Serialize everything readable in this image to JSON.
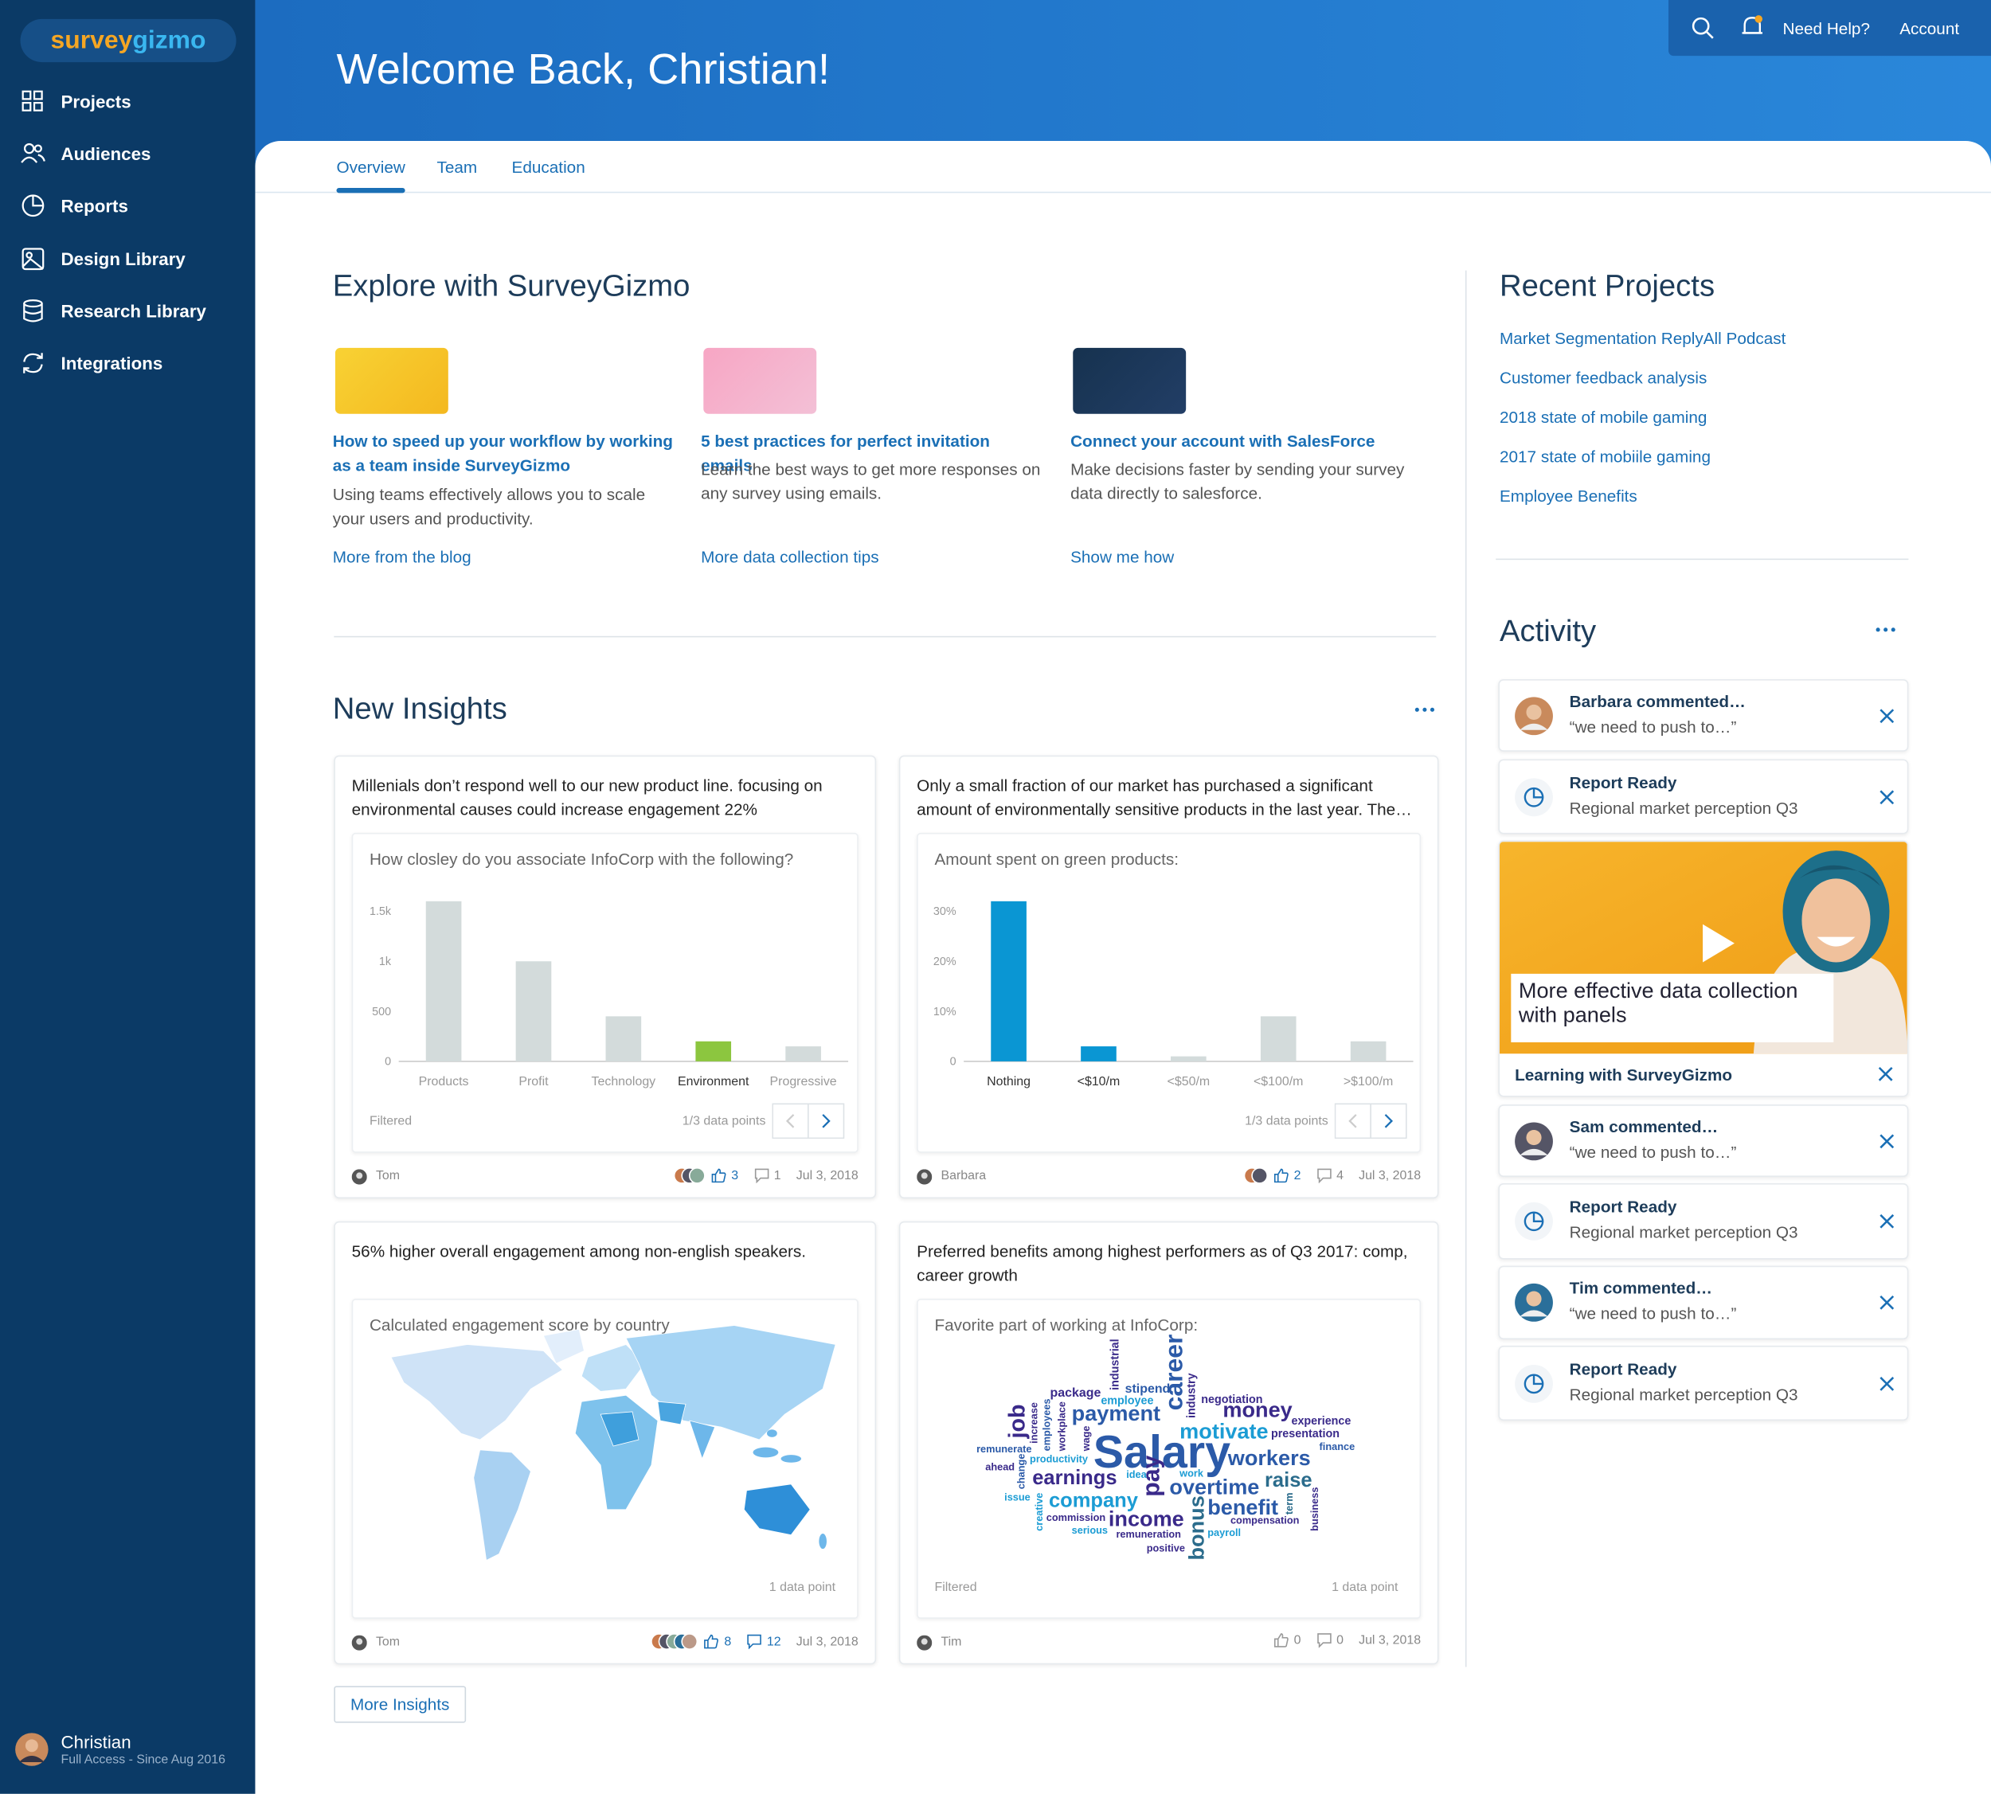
{
  "brand": [
    "survey",
    "gizmo"
  ],
  "nav": [
    "Projects",
    "Audiences",
    "Reports",
    "Design Library",
    "Research Library",
    "Integrations"
  ],
  "user": {
    "name": "Christian",
    "access": "Full Access - Since Aug 2016"
  },
  "header": {
    "title": "Welcome Back, Christian!",
    "links": [
      "Need Help?",
      "Account"
    ]
  },
  "tabs": [
    "Overview",
    "Team",
    "Education"
  ],
  "explore": {
    "title": "Explore with SurveyGizmo",
    "cards": [
      {
        "title": "How to speed up your workflow by working as a team inside SurveyGizmo",
        "text": "Using teams effectively allows you to scale your users and productivity.",
        "link": "More from the blog"
      },
      {
        "title": "5 best practices for perfect invitation emails",
        "text": "Learn the best ways to get more responses on any survey using emails.",
        "link": "More data collection tips"
      },
      {
        "title": "Connect your account with SalesForce",
        "text": "Make decisions faster by sending your survey data directly to salesforce.",
        "link": "Show me how"
      }
    ]
  },
  "insights": {
    "title": "New Insights",
    "more": "More Insights",
    "cards": [
      {
        "text": "Millenials don’t respond well to our new product line. focusing on environmental causes could increase engagement 22%",
        "chart": {
          "type": "bar",
          "title": "How closley do you associate InfoCorp with the following?",
          "categories": [
            "Products",
            "Profit",
            "Technology",
            "Environment",
            "Progressive"
          ],
          "values": [
            1600,
            1000,
            450,
            200,
            150
          ],
          "colors": [
            "#d3dbdb",
            "#d3dbdb",
            "#d3dbdb",
            "#8cc63f",
            "#d3dbdb"
          ],
          "highlight": [
            3
          ],
          "ylim": [
            0,
            1700
          ],
          "yticks": [
            0,
            500,
            {
              "value": 1000,
              "label": "1k"
            },
            {
              "value": 1500,
              "label": "1.5k"
            }
          ],
          "grid": false,
          "filter": "Filtered",
          "points": "1/3 data points"
        },
        "author": "Tom",
        "likes": 3,
        "comments": 1,
        "date": "Jul 3, 2018"
      },
      {
        "text": "Only a small fraction of our market has purchased a significant amount of environmentally sensitive products in the last year. The…",
        "chart": {
          "type": "bar",
          "title": "Amount spent on green products:",
          "categories": [
            "Nothing",
            "<$10/m",
            "<$50/m",
            "<$100/m",
            ">$100/m"
          ],
          "values": [
            32,
            3,
            1,
            9,
            4
          ],
          "colors": [
            "#0a96d3",
            "#0a96d3",
            "#d3dbdb",
            "#d3dbdb",
            "#d3dbdb"
          ],
          "highlight": [
            0,
            1
          ],
          "ylim": [
            0,
            34
          ],
          "yticks": [
            0,
            {
              "value": 10,
              "label": "10%"
            },
            {
              "value": 20,
              "label": "20%"
            },
            {
              "value": 30,
              "label": "30%"
            }
          ],
          "grid": false,
          "points": "1/3 data points"
        },
        "author": "Barbara",
        "likes": 2,
        "comments": 4,
        "date": "Jul 3, 2018"
      },
      {
        "text": "56% higher overall engagement among non-english speakers.",
        "chart": {
          "type": "map",
          "title": "Calculated engagement score by country",
          "points": "1 data point"
        },
        "author": "Tom",
        "likes": 8,
        "comments": 12,
        "date": "Jul 3, 2018"
      },
      {
        "text": "Preferred benefits among highest performers as of Q3 2017: comp, career growth",
        "chart": {
          "type": "wordcloud",
          "title": "Favorite part of working at InfoCorp:",
          "words": [
            "Salary",
            "payment",
            "career",
            "money",
            "motivate",
            "workers",
            "earnings",
            "overtime",
            "raise",
            "company",
            "income",
            "benefit",
            "bonus",
            "pay",
            "job",
            "package",
            "stipend",
            "employee",
            "industrial",
            "industry",
            "negotiation",
            "experience",
            "presentation",
            "finance",
            "remunerate",
            "productivity",
            "ahead",
            "increase",
            "employees",
            "workplace",
            "wage",
            "change",
            "issue",
            "creative",
            "idea",
            "work",
            "term",
            "business",
            "commission",
            "serious",
            "remuneration",
            "compensation",
            "payroll",
            "positive"
          ],
          "filter": "Filtered",
          "points": "1 data point"
        },
        "author": "Tim",
        "likes": 0,
        "comments": 0,
        "date": "Jul 3, 2018"
      }
    ]
  },
  "recent": {
    "title": "Recent Projects",
    "items": [
      "Market Segmentation ReplyAll Podcast",
      "Customer feedback analysis",
      "2018 state of mobile gaming",
      "2017 state of mobiile gaming",
      "Employee Benefits"
    ]
  },
  "activity": {
    "title": "Activity",
    "items": [
      {
        "title": "Barbara commented…",
        "text": "“we need to push to…”"
      },
      {
        "title": "Report Ready",
        "text": "Regional market perception Q3"
      },
      {
        "title": "Sam commented…",
        "text": "“we need to push to…”"
      },
      {
        "title": "Report Ready",
        "text": "Regional market perception Q3"
      },
      {
        "title": "Tim commented…",
        "text": "“we need to push to…”"
      },
      {
        "title": "Report Ready",
        "text": "Regional market perception Q3"
      }
    ],
    "video": {
      "caption": "More effective data collection with panels",
      "label": "Learning with SurveyGizmo"
    }
  }
}
